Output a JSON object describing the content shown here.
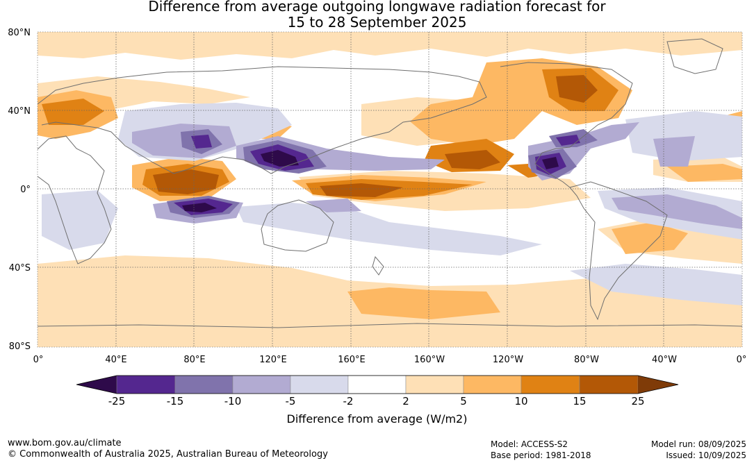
{
  "title": {
    "line1": "Difference from average outgoing longwave radiation forecast for",
    "line2": "15 to 28 September 2025"
  },
  "map": {
    "lat_labels": [
      "80°N",
      "40°N",
      "0°",
      "40°S",
      "80°S"
    ],
    "lon_labels": [
      "0°",
      "40°E",
      "80°E",
      "120°E",
      "160°E",
      "160°W",
      "120°W",
      "80°W",
      "40°W",
      "0°"
    ]
  },
  "colorbar": {
    "title": "Difference from average (W/m2)",
    "tick_labels": [
      "-25",
      "-15",
      "-10",
      "-5",
      "-2",
      "2",
      "5",
      "10",
      "15",
      "25"
    ],
    "colors": [
      "#2e0a4a",
      "#54278f",
      "#8073ac",
      "#b2abd2",
      "#d8daeb",
      "#ffffff",
      "#fee0b6",
      "#fdb863",
      "#e08214",
      "#b35806",
      "#7f3b08"
    ]
  },
  "footer": {
    "website": "www.bom.gov.au/climate",
    "copyright": "© Commonwealth of Australia 2025, Australian Bureau of Meteorology",
    "model": "Model: ACCESS-S2",
    "base_period": "Base period: 1981-2018",
    "model_run": "Model run: 08/09/2025",
    "issued": "Issued: 10/09/2025"
  }
}
